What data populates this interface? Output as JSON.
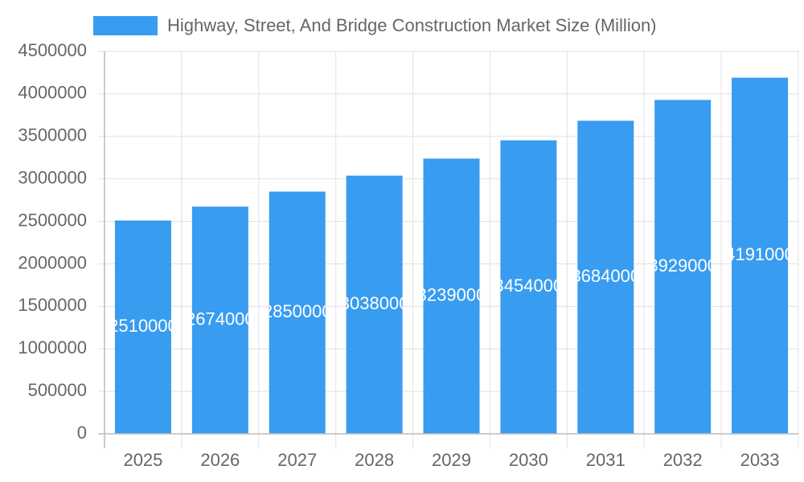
{
  "chart_data": {
    "type": "bar",
    "categories": [
      "2025",
      "2026",
      "2027",
      "2028",
      "2029",
      "2030",
      "2031",
      "2032",
      "2033"
    ],
    "series": [
      {
        "name": "Highway, Street, And Bridge Construction Market Size (Million)",
        "color": "#389cf0",
        "values": [
          2510000,
          2674000,
          2850000,
          3038000,
          3239000,
          3454000,
          3684000,
          3929000,
          4191000
        ]
      }
    ],
    "ylim": [
      0,
      4500000
    ],
    "yticks": [
      0,
      500000,
      1000000,
      1500000,
      2000000,
      2500000,
      3000000,
      3500000,
      4000000,
      4500000
    ],
    "grid": true,
    "legend": "top"
  }
}
